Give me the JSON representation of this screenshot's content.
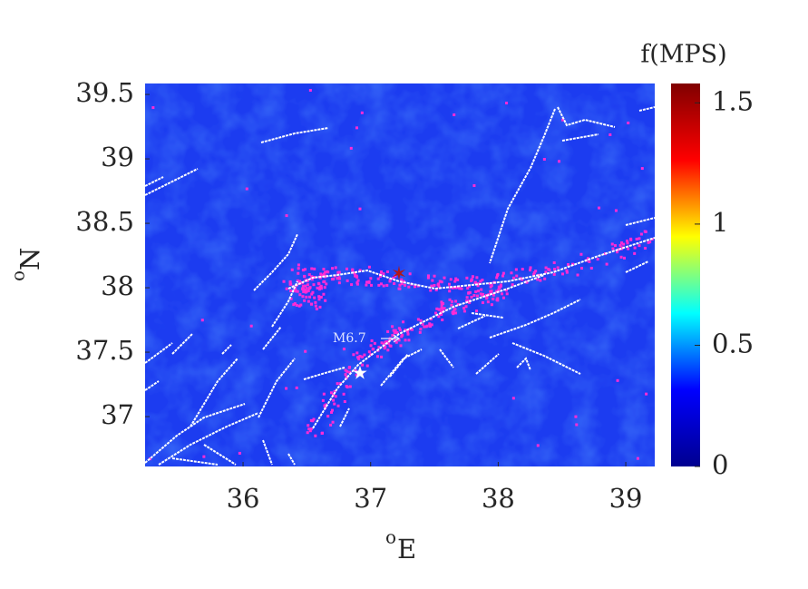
{
  "map": {
    "xlim": [
      35.232,
      39.227
    ],
    "ylim": [
      36.613,
      39.585
    ],
    "xticks": [
      36,
      37,
      38,
      39
    ],
    "yticks": [
      37,
      37.5,
      38,
      38.5,
      39,
      39.5
    ],
    "xlabel": {
      "sup": "o",
      "main": "E"
    },
    "ylabel": {
      "sup": "o",
      "main": "N"
    },
    "annotation": "M6.7"
  },
  "colorbar": {
    "label": "f(MPS)",
    "lim": [
      0,
      1.58
    ],
    "ticks": [
      0,
      0.5,
      1,
      1.5
    ],
    "colormap": [
      "#00008f",
      "#0000ff",
      "#00ffff",
      "#ffff00",
      "#ff0000",
      "#800000"
    ]
  }
}
